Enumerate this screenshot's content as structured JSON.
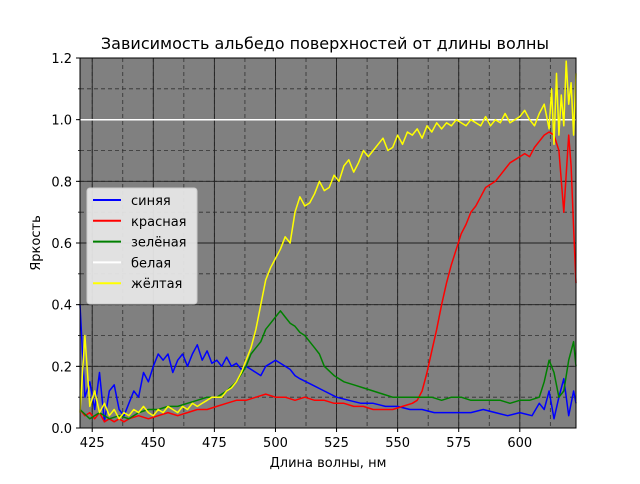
{
  "chart_data": {
    "type": "line",
    "title": "Зависимость альбедо поверхностей от длины волны",
    "xlabel": "Длина волны, нм",
    "ylabel": "Яркость",
    "xlim": [
      420,
      623
    ],
    "ylim": [
      0.0,
      1.2
    ],
    "xticks": [
      425,
      450,
      475,
      500,
      525,
      550,
      575,
      600
    ],
    "yticks": [
      0.0,
      0.2,
      0.4,
      0.6,
      0.8,
      1.0,
      1.2
    ],
    "grid": true,
    "background": "#808080",
    "legend_position": "center-left",
    "series": [
      {
        "name": "синяя",
        "color": "#0000ff",
        "x": [
          420,
          421,
          422,
          424,
          426,
          428,
          430,
          432,
          434,
          436,
          438,
          440,
          442,
          444,
          446,
          448,
          450,
          452,
          454,
          456,
          458,
          460,
          462,
          464,
          466,
          468,
          470,
          472,
          474,
          476,
          478,
          480,
          482,
          484,
          486,
          488,
          490,
          492,
          494,
          496,
          498,
          500,
          502,
          504,
          506,
          508,
          510,
          515,
          520,
          525,
          530,
          535,
          540,
          545,
          550,
          555,
          560,
          565,
          570,
          575,
          580,
          585,
          590,
          595,
          600,
          605,
          608,
          610,
          612,
          614,
          616,
          618,
          620,
          622,
          623
        ],
        "y": [
          0.4,
          0.25,
          0.1,
          0.15,
          0.06,
          0.18,
          0.02,
          0.12,
          0.14,
          0.06,
          0.04,
          0.08,
          0.12,
          0.1,
          0.18,
          0.15,
          0.2,
          0.24,
          0.22,
          0.24,
          0.18,
          0.22,
          0.24,
          0.2,
          0.24,
          0.27,
          0.22,
          0.25,
          0.21,
          0.22,
          0.2,
          0.23,
          0.2,
          0.21,
          0.19,
          0.2,
          0.19,
          0.18,
          0.17,
          0.2,
          0.21,
          0.22,
          0.21,
          0.2,
          0.19,
          0.17,
          0.16,
          0.14,
          0.12,
          0.1,
          0.09,
          0.08,
          0.08,
          0.07,
          0.07,
          0.06,
          0.06,
          0.05,
          0.05,
          0.05,
          0.05,
          0.06,
          0.05,
          0.04,
          0.05,
          0.04,
          0.08,
          0.06,
          0.12,
          0.03,
          0.1,
          0.16,
          0.04,
          0.12,
          0.08
        ]
      },
      {
        "name": "красная",
        "color": "#ff0000",
        "x": [
          420,
          422,
          424,
          426,
          428,
          430,
          432,
          434,
          436,
          438,
          440,
          444,
          448,
          452,
          456,
          460,
          464,
          468,
          472,
          476,
          480,
          484,
          488,
          492,
          496,
          500,
          504,
          508,
          512,
          516,
          520,
          524,
          528,
          532,
          536,
          540,
          544,
          548,
          552,
          556,
          558,
          560,
          562,
          564,
          566,
          568,
          570,
          572,
          574,
          576,
          578,
          580,
          582,
          584,
          586,
          588,
          590,
          592,
          594,
          596,
          598,
          600,
          602,
          604,
          606,
          608,
          610,
          612,
          614,
          616,
          618,
          620,
          621,
          622,
          623
        ],
        "y": [
          0.06,
          0.04,
          0.05,
          0.03,
          0.05,
          0.02,
          0.03,
          0.02,
          0.03,
          0.02,
          0.03,
          0.04,
          0.03,
          0.04,
          0.05,
          0.04,
          0.05,
          0.06,
          0.06,
          0.07,
          0.08,
          0.09,
          0.09,
          0.1,
          0.11,
          0.1,
          0.1,
          0.09,
          0.1,
          0.09,
          0.09,
          0.08,
          0.08,
          0.07,
          0.07,
          0.06,
          0.06,
          0.06,
          0.07,
          0.08,
          0.09,
          0.12,
          0.18,
          0.25,
          0.32,
          0.4,
          0.47,
          0.53,
          0.58,
          0.63,
          0.66,
          0.7,
          0.72,
          0.75,
          0.78,
          0.79,
          0.8,
          0.82,
          0.84,
          0.86,
          0.87,
          0.88,
          0.89,
          0.88,
          0.91,
          0.93,
          0.95,
          0.96,
          0.95,
          0.9,
          0.7,
          0.95,
          0.85,
          0.65,
          0.47
        ]
      },
      {
        "name": "зелёная",
        "color": "#008000",
        "x": [
          420,
          424,
          428,
          432,
          436,
          440,
          444,
          448,
          452,
          456,
          460,
          464,
          468,
          472,
          476,
          480,
          484,
          488,
          490,
          492,
          494,
          496,
          498,
          500,
          502,
          504,
          506,
          508,
          510,
          512,
          514,
          516,
          518,
          520,
          524,
          528,
          532,
          536,
          540,
          544,
          548,
          552,
          556,
          560,
          564,
          568,
          572,
          576,
          580,
          584,
          588,
          592,
          596,
          600,
          604,
          608,
          610,
          612,
          614,
          616,
          618,
          620,
          622,
          623
        ],
        "y": [
          0.06,
          0.03,
          0.05,
          0.03,
          0.04,
          0.03,
          0.05,
          0.06,
          0.06,
          0.07,
          0.07,
          0.08,
          0.09,
          0.1,
          0.1,
          0.12,
          0.15,
          0.2,
          0.24,
          0.26,
          0.28,
          0.32,
          0.34,
          0.36,
          0.38,
          0.36,
          0.34,
          0.33,
          0.31,
          0.3,
          0.28,
          0.26,
          0.24,
          0.2,
          0.17,
          0.15,
          0.14,
          0.13,
          0.12,
          0.11,
          0.1,
          0.1,
          0.1,
          0.1,
          0.1,
          0.09,
          0.1,
          0.1,
          0.09,
          0.09,
          0.09,
          0.09,
          0.08,
          0.09,
          0.09,
          0.1,
          0.15,
          0.22,
          0.18,
          0.1,
          0.12,
          0.22,
          0.28,
          0.2
        ]
      },
      {
        "name": "белая",
        "color": "#ffffff",
        "x": [
          420,
          623
        ],
        "y": [
          1.0,
          1.0
        ]
      },
      {
        "name": "жёлтая",
        "color": "#ffff00",
        "x": [
          420,
          422,
          424,
          426,
          428,
          430,
          432,
          434,
          436,
          438,
          440,
          442,
          444,
          446,
          448,
          450,
          452,
          454,
          456,
          458,
          460,
          462,
          464,
          466,
          468,
          470,
          472,
          474,
          476,
          478,
          480,
          482,
          484,
          486,
          488,
          490,
          492,
          494,
          496,
          498,
          500,
          502,
          504,
          506,
          508,
          510,
          512,
          514,
          516,
          518,
          520,
          522,
          524,
          526,
          528,
          530,
          532,
          534,
          536,
          538,
          540,
          542,
          544,
          546,
          548,
          550,
          552,
          554,
          556,
          558,
          560,
          562,
          564,
          566,
          568,
          570,
          572,
          574,
          576,
          578,
          580,
          582,
          584,
          586,
          588,
          590,
          592,
          594,
          596,
          598,
          600,
          602,
          604,
          606,
          608,
          610,
          612,
          613,
          614,
          615,
          616,
          617,
          618,
          619,
          620,
          621,
          622,
          623
        ],
        "y": [
          0.05,
          0.3,
          0.07,
          0.12,
          0.05,
          0.08,
          0.04,
          0.06,
          0.03,
          0.05,
          0.04,
          0.06,
          0.05,
          0.07,
          0.05,
          0.04,
          0.06,
          0.05,
          0.07,
          0.06,
          0.05,
          0.07,
          0.06,
          0.08,
          0.07,
          0.08,
          0.09,
          0.1,
          0.1,
          0.1,
          0.12,
          0.13,
          0.15,
          0.18,
          0.22,
          0.26,
          0.32,
          0.4,
          0.48,
          0.52,
          0.55,
          0.58,
          0.62,
          0.6,
          0.7,
          0.75,
          0.72,
          0.73,
          0.76,
          0.8,
          0.77,
          0.78,
          0.82,
          0.8,
          0.85,
          0.87,
          0.83,
          0.86,
          0.9,
          0.88,
          0.9,
          0.92,
          0.94,
          0.9,
          0.91,
          0.95,
          0.92,
          0.96,
          0.95,
          0.97,
          0.94,
          0.98,
          0.96,
          0.99,
          0.97,
          0.99,
          0.98,
          1.0,
          0.99,
          0.98,
          1.0,
          0.99,
          0.98,
          1.01,
          0.98,
          1.0,
          0.99,
          1.02,
          0.99,
          1.0,
          1.01,
          1.03,
          1.0,
          0.98,
          1.02,
          1.05,
          0.97,
          1.1,
          0.92,
          1.15,
          0.95,
          1.08,
          0.98,
          1.19,
          1.05,
          1.12,
          0.95,
          1.15
        ]
      }
    ]
  }
}
